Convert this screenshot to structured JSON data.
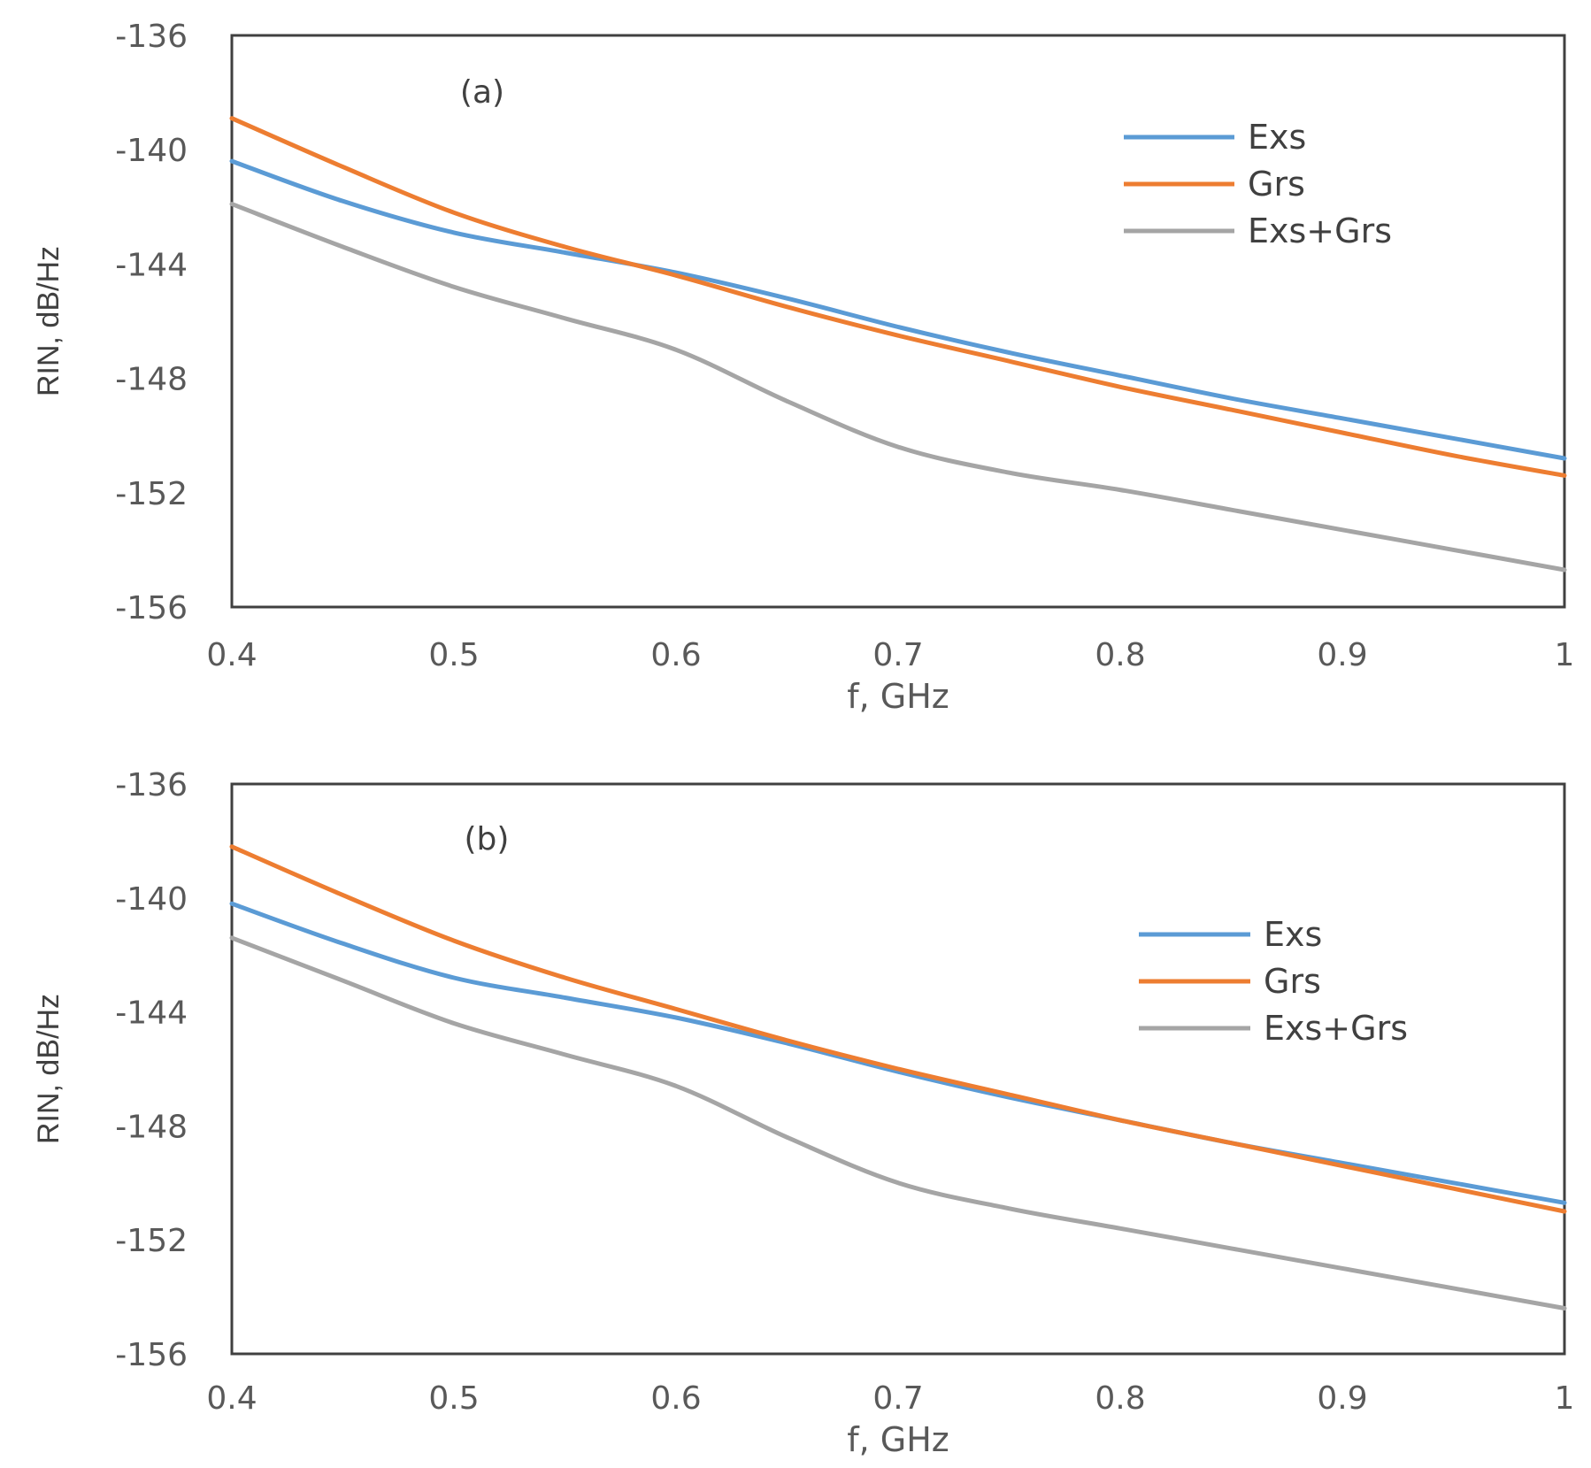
{
  "chart_data": [
    {
      "type": "line",
      "title": "(a)",
      "xlabel": "f, GHz",
      "ylabel": "RIN, dB/Hz",
      "xlim": [
        0.4,
        1.0
      ],
      "ylim": [
        -156,
        -136
      ],
      "xticks": [
        "0.4",
        "0.5",
        "0.6",
        "0.7",
        "0.8",
        "0.9",
        "1"
      ],
      "yticks": [
        "-136",
        "-140",
        "-144",
        "-148",
        "-152",
        "-156"
      ],
      "grid": false,
      "legend_position": "top-right",
      "x": [
        0.4,
        0.45,
        0.5,
        0.55,
        0.6,
        0.65,
        0.7,
        0.75,
        0.8,
        0.85,
        0.9,
        0.95,
        1.0
      ],
      "series": [
        {
          "name": "Exs",
          "color": "#5b9bd5",
          "values": [
            -140.4,
            -141.8,
            -142.9,
            -143.6,
            -144.3,
            -145.2,
            -146.2,
            -147.1,
            -147.9,
            -148.7,
            -149.4,
            -150.1,
            -150.8
          ]
        },
        {
          "name": "Grs",
          "color": "#ed7d31",
          "values": [
            -138.9,
            -140.6,
            -142.2,
            -143.4,
            -144.4,
            -145.5,
            -146.5,
            -147.4,
            -148.3,
            -149.1,
            -149.9,
            -150.7,
            -151.4
          ]
        },
        {
          "name": "Exs+Grs",
          "color": "#a5a5a5",
          "values": [
            -141.9,
            -143.4,
            -144.8,
            -145.9,
            -147.0,
            -148.8,
            -150.4,
            -151.3,
            -151.9,
            -152.6,
            -153.3,
            -154.0,
            -154.7
          ]
        }
      ]
    },
    {
      "type": "line",
      "title": "(b)",
      "xlabel": "f, GHz",
      "ylabel": "RIN, dB/Hz",
      "xlim": [
        0.4,
        1.0
      ],
      "ylim": [
        -156,
        -136
      ],
      "xticks": [
        "0.4",
        "0.5",
        "0.6",
        "0.7",
        "0.8",
        "0.9",
        "1"
      ],
      "yticks": [
        "-136",
        "-140",
        "-144",
        "-148",
        "-152",
        "-156"
      ],
      "grid": false,
      "legend_position": "top-right",
      "x": [
        0.4,
        0.45,
        0.5,
        0.55,
        0.6,
        0.65,
        0.7,
        0.75,
        0.8,
        0.85,
        0.9,
        0.95,
        1.0
      ],
      "series": [
        {
          "name": "Exs",
          "color": "#5b9bd5",
          "values": [
            -140.2,
            -141.6,
            -142.8,
            -143.5,
            -144.2,
            -145.1,
            -146.1,
            -147.0,
            -147.8,
            -148.6,
            -149.3,
            -150.0,
            -150.7
          ]
        },
        {
          "name": "Grs",
          "color": "#ed7d31",
          "values": [
            -138.2,
            -139.9,
            -141.5,
            -142.8,
            -143.9,
            -145.0,
            -146.0,
            -146.9,
            -147.8,
            -148.6,
            -149.4,
            -150.2,
            -151.0
          ]
        },
        {
          "name": "Exs+Grs",
          "color": "#a5a5a5",
          "values": [
            -141.4,
            -142.9,
            -144.4,
            -145.5,
            -146.6,
            -148.4,
            -150.0,
            -150.9,
            -151.6,
            -152.3,
            -153.0,
            -153.7,
            -154.4
          ]
        }
      ]
    }
  ]
}
